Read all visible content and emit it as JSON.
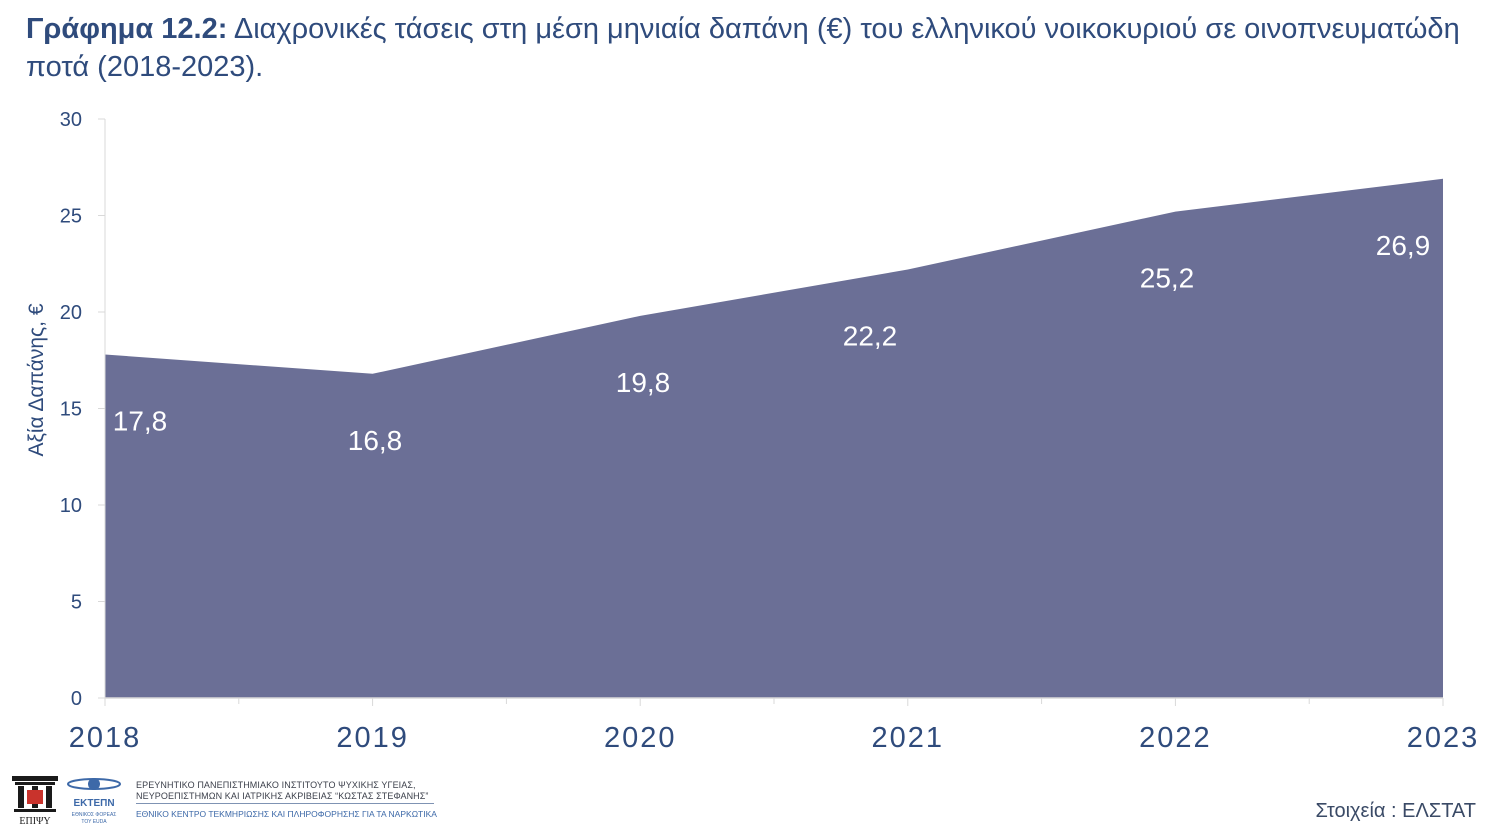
{
  "title": {
    "lead": "Γράφημα 12.2:",
    "text": " Διαχρονικές τάσεις στη μέση μηνιαία δαπάνη (€) του ελληνικού νοικοκυριού σε οινοπνευματώδη ποτά (2018-2023)."
  },
  "chart_data": {
    "type": "area",
    "x": [
      "2018",
      "2019",
      "2020",
      "2021",
      "2022",
      "2023"
    ],
    "values": [
      17.8,
      16.8,
      19.8,
      22.2,
      25.2,
      26.9
    ],
    "data_labels": [
      "17,8",
      "16,8",
      "19,8",
      "22,2",
      "25,2",
      "26,9"
    ],
    "ylabel": "Αξία Δαπάνης, €",
    "xlabel": "",
    "ylim": [
      0,
      30
    ],
    "yticks": [
      0,
      5,
      10,
      15,
      20,
      25,
      30
    ],
    "grid": false,
    "fill_color": "#6b6f96"
  },
  "footer": {
    "logo1_caption": "ΕΠΙΨΥ",
    "logo2_caption": "ΕΚΤΕΠΝ",
    "logo2_subcaption1": "ΕΘΝΙΚΟΣ ΦΟΡΕΑΣ",
    "logo2_subcaption2": "ΤΟΥ EUDA",
    "org_line1": "ΕΡΕΥΝΗΤΙΚΟ ΠΑΝΕΠΙΣΤΗΜΙΑΚΟ ΙΝΣΤΙΤΟΥΤΟ ΨΥΧΙΚΗΣ ΥΓΕΙΑΣ,",
    "org_line2": "ΝΕΥΡΟΕΠΙΣΤΗΜΩΝ ΚΑΙ ΙΑΤΡΙΚΗΣ ΑΚΡΙΒΕΙΑΣ “ΚΩΣΤΑΣ ΣΤΕΦΑΝΗΣ”",
    "org_line3": "ΕΘΝΙΚΟ ΚΕΝΤΡΟ ΤΕΚΜΗΡΙΩΣΗΣ ΚΑΙ ΠΛΗΡΟΦΟΡΗΣΗΣ ΓΙΑ ΤΑ ΝΑΡΚΩΤΙΚΑ",
    "source": "Στοιχεία : ΕΛΣΤΑΤ"
  }
}
